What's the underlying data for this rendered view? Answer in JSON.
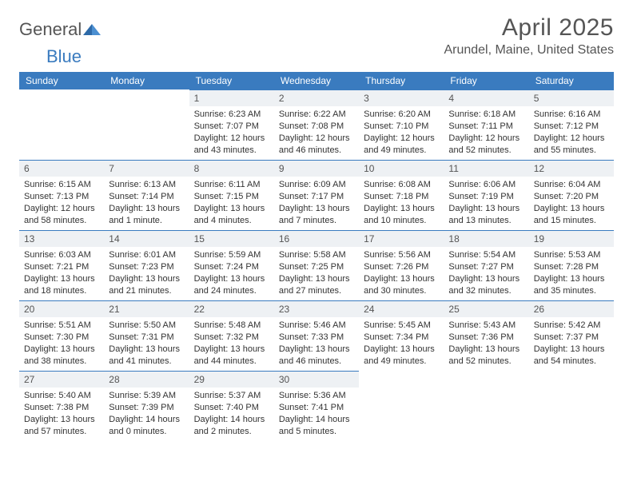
{
  "brand": {
    "part1": "General",
    "part2": "Blue"
  },
  "title": "April 2025",
  "location": "Arundel, Maine, United States",
  "colors": {
    "header_bg": "#3a7bbf",
    "header_text": "#ffffff",
    "daynum_bg": "#eef1f4",
    "border": "#3a7bbf",
    "text": "#333333",
    "title_text": "#555555"
  },
  "weekdays": [
    "Sunday",
    "Monday",
    "Tuesday",
    "Wednesday",
    "Thursday",
    "Friday",
    "Saturday"
  ],
  "weeks": [
    [
      null,
      null,
      {
        "n": "1",
        "sr": "Sunrise: 6:23 AM",
        "ss": "Sunset: 7:07 PM",
        "d1": "Daylight: 12 hours",
        "d2": "and 43 minutes."
      },
      {
        "n": "2",
        "sr": "Sunrise: 6:22 AM",
        "ss": "Sunset: 7:08 PM",
        "d1": "Daylight: 12 hours",
        "d2": "and 46 minutes."
      },
      {
        "n": "3",
        "sr": "Sunrise: 6:20 AM",
        "ss": "Sunset: 7:10 PM",
        "d1": "Daylight: 12 hours",
        "d2": "and 49 minutes."
      },
      {
        "n": "4",
        "sr": "Sunrise: 6:18 AM",
        "ss": "Sunset: 7:11 PM",
        "d1": "Daylight: 12 hours",
        "d2": "and 52 minutes."
      },
      {
        "n": "5",
        "sr": "Sunrise: 6:16 AM",
        "ss": "Sunset: 7:12 PM",
        "d1": "Daylight: 12 hours",
        "d2": "and 55 minutes."
      }
    ],
    [
      {
        "n": "6",
        "sr": "Sunrise: 6:15 AM",
        "ss": "Sunset: 7:13 PM",
        "d1": "Daylight: 12 hours",
        "d2": "and 58 minutes."
      },
      {
        "n": "7",
        "sr": "Sunrise: 6:13 AM",
        "ss": "Sunset: 7:14 PM",
        "d1": "Daylight: 13 hours",
        "d2": "and 1 minute."
      },
      {
        "n": "8",
        "sr": "Sunrise: 6:11 AM",
        "ss": "Sunset: 7:15 PM",
        "d1": "Daylight: 13 hours",
        "d2": "and 4 minutes."
      },
      {
        "n": "9",
        "sr": "Sunrise: 6:09 AM",
        "ss": "Sunset: 7:17 PM",
        "d1": "Daylight: 13 hours",
        "d2": "and 7 minutes."
      },
      {
        "n": "10",
        "sr": "Sunrise: 6:08 AM",
        "ss": "Sunset: 7:18 PM",
        "d1": "Daylight: 13 hours",
        "d2": "and 10 minutes."
      },
      {
        "n": "11",
        "sr": "Sunrise: 6:06 AM",
        "ss": "Sunset: 7:19 PM",
        "d1": "Daylight: 13 hours",
        "d2": "and 13 minutes."
      },
      {
        "n": "12",
        "sr": "Sunrise: 6:04 AM",
        "ss": "Sunset: 7:20 PM",
        "d1": "Daylight: 13 hours",
        "d2": "and 15 minutes."
      }
    ],
    [
      {
        "n": "13",
        "sr": "Sunrise: 6:03 AM",
        "ss": "Sunset: 7:21 PM",
        "d1": "Daylight: 13 hours",
        "d2": "and 18 minutes."
      },
      {
        "n": "14",
        "sr": "Sunrise: 6:01 AM",
        "ss": "Sunset: 7:23 PM",
        "d1": "Daylight: 13 hours",
        "d2": "and 21 minutes."
      },
      {
        "n": "15",
        "sr": "Sunrise: 5:59 AM",
        "ss": "Sunset: 7:24 PM",
        "d1": "Daylight: 13 hours",
        "d2": "and 24 minutes."
      },
      {
        "n": "16",
        "sr": "Sunrise: 5:58 AM",
        "ss": "Sunset: 7:25 PM",
        "d1": "Daylight: 13 hours",
        "d2": "and 27 minutes."
      },
      {
        "n": "17",
        "sr": "Sunrise: 5:56 AM",
        "ss": "Sunset: 7:26 PM",
        "d1": "Daylight: 13 hours",
        "d2": "and 30 minutes."
      },
      {
        "n": "18",
        "sr": "Sunrise: 5:54 AM",
        "ss": "Sunset: 7:27 PM",
        "d1": "Daylight: 13 hours",
        "d2": "and 32 minutes."
      },
      {
        "n": "19",
        "sr": "Sunrise: 5:53 AM",
        "ss": "Sunset: 7:28 PM",
        "d1": "Daylight: 13 hours",
        "d2": "and 35 minutes."
      }
    ],
    [
      {
        "n": "20",
        "sr": "Sunrise: 5:51 AM",
        "ss": "Sunset: 7:30 PM",
        "d1": "Daylight: 13 hours",
        "d2": "and 38 minutes."
      },
      {
        "n": "21",
        "sr": "Sunrise: 5:50 AM",
        "ss": "Sunset: 7:31 PM",
        "d1": "Daylight: 13 hours",
        "d2": "and 41 minutes."
      },
      {
        "n": "22",
        "sr": "Sunrise: 5:48 AM",
        "ss": "Sunset: 7:32 PM",
        "d1": "Daylight: 13 hours",
        "d2": "and 44 minutes."
      },
      {
        "n": "23",
        "sr": "Sunrise: 5:46 AM",
        "ss": "Sunset: 7:33 PM",
        "d1": "Daylight: 13 hours",
        "d2": "and 46 minutes."
      },
      {
        "n": "24",
        "sr": "Sunrise: 5:45 AM",
        "ss": "Sunset: 7:34 PM",
        "d1": "Daylight: 13 hours",
        "d2": "and 49 minutes."
      },
      {
        "n": "25",
        "sr": "Sunrise: 5:43 AM",
        "ss": "Sunset: 7:36 PM",
        "d1": "Daylight: 13 hours",
        "d2": "and 52 minutes."
      },
      {
        "n": "26",
        "sr": "Sunrise: 5:42 AM",
        "ss": "Sunset: 7:37 PM",
        "d1": "Daylight: 13 hours",
        "d2": "and 54 minutes."
      }
    ],
    [
      {
        "n": "27",
        "sr": "Sunrise: 5:40 AM",
        "ss": "Sunset: 7:38 PM",
        "d1": "Daylight: 13 hours",
        "d2": "and 57 minutes."
      },
      {
        "n": "28",
        "sr": "Sunrise: 5:39 AM",
        "ss": "Sunset: 7:39 PM",
        "d1": "Daylight: 14 hours",
        "d2": "and 0 minutes."
      },
      {
        "n": "29",
        "sr": "Sunrise: 5:37 AM",
        "ss": "Sunset: 7:40 PM",
        "d1": "Daylight: 14 hours",
        "d2": "and 2 minutes."
      },
      {
        "n": "30",
        "sr": "Sunrise: 5:36 AM",
        "ss": "Sunset: 7:41 PM",
        "d1": "Daylight: 14 hours",
        "d2": "and 5 minutes."
      },
      null,
      null,
      null
    ]
  ]
}
